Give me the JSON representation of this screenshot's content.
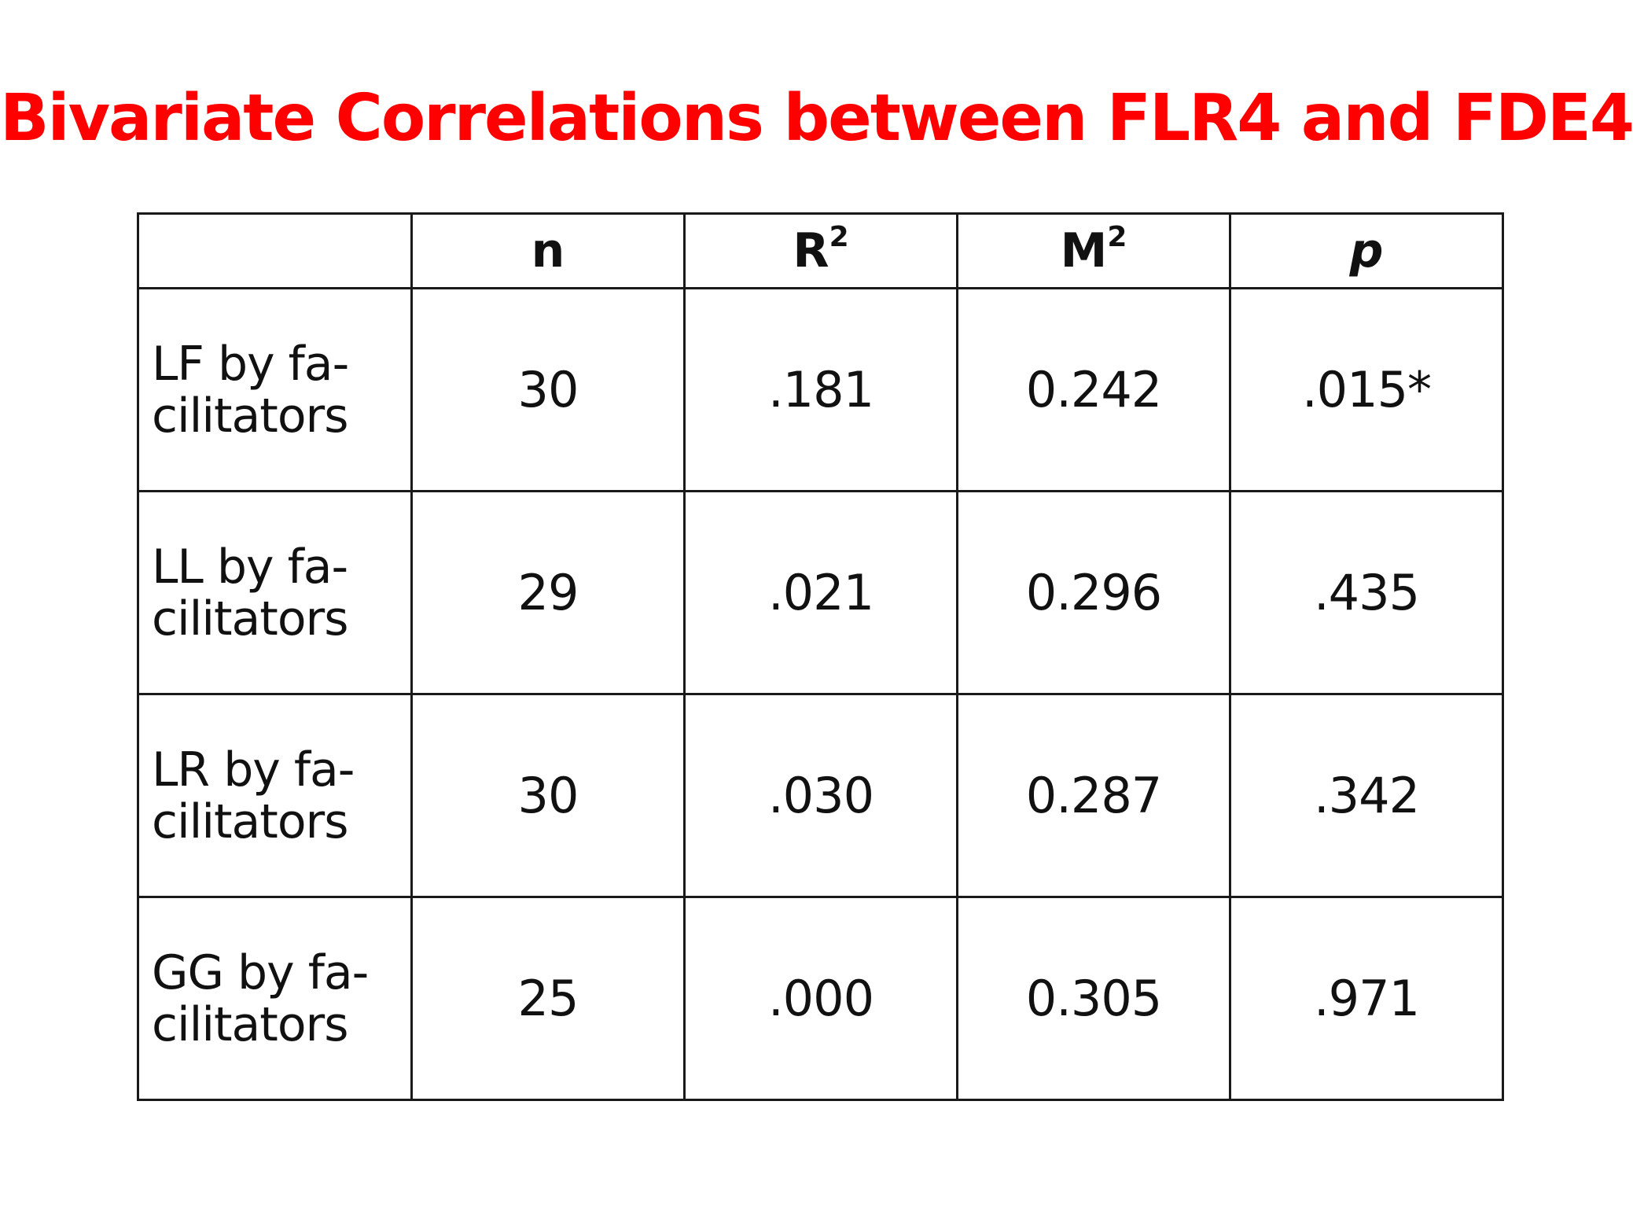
{
  "slide": {
    "title": "Bivariate Correlations between FLR4 and FDE4"
  },
  "table": {
    "headers": [
      {
        "base": "",
        "sup": ""
      },
      {
        "base": "n",
        "sup": ""
      },
      {
        "base": "R",
        "sup": "2"
      },
      {
        "base": "M",
        "sup": "2"
      },
      {
        "base": "p",
        "sup": ""
      }
    ],
    "rows": [
      {
        "label_line1": "LF by fa-",
        "label_line2": "cilitators",
        "n": "30",
        "r2": ".181",
        "m2": "0.242",
        "p": ".015*"
      },
      {
        "label_line1": "LL by fa-",
        "label_line2": "cilitators",
        "n": "29",
        "r2": ".021",
        "m2": "0.296",
        "p": ".435"
      },
      {
        "label_line1": "LR by fa-",
        "label_line2": "cilitators",
        "n": "30",
        "r2": ".030",
        "m2": "0.287",
        "p": ".342"
      },
      {
        "label_line1": "GG by fa-",
        "label_line2": "cilitators",
        "n": "25",
        "r2": ".000",
        "m2": "0.305",
        "p": ".971"
      }
    ]
  },
  "colors": {
    "title": "#ff0000",
    "text": "#111111",
    "border": "#1a1a1a",
    "background": "#ffffff"
  }
}
